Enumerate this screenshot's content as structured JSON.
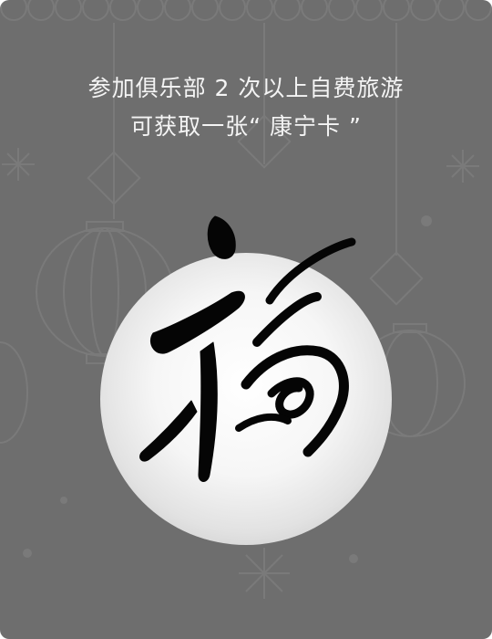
{
  "card": {
    "background_color": "#6e6e6e",
    "headline_line1": "参加俱乐部 2 次以上自费旅游",
    "headline_line2": "可获取一张“ 康宁卡 ”"
  },
  "emblem": {
    "character": "福",
    "icon": "fu-calligraphy-icon"
  },
  "background_icons": [
    "lantern-icon",
    "chinese-knot-icon",
    "coin-icon",
    "snowflake-icon"
  ]
}
